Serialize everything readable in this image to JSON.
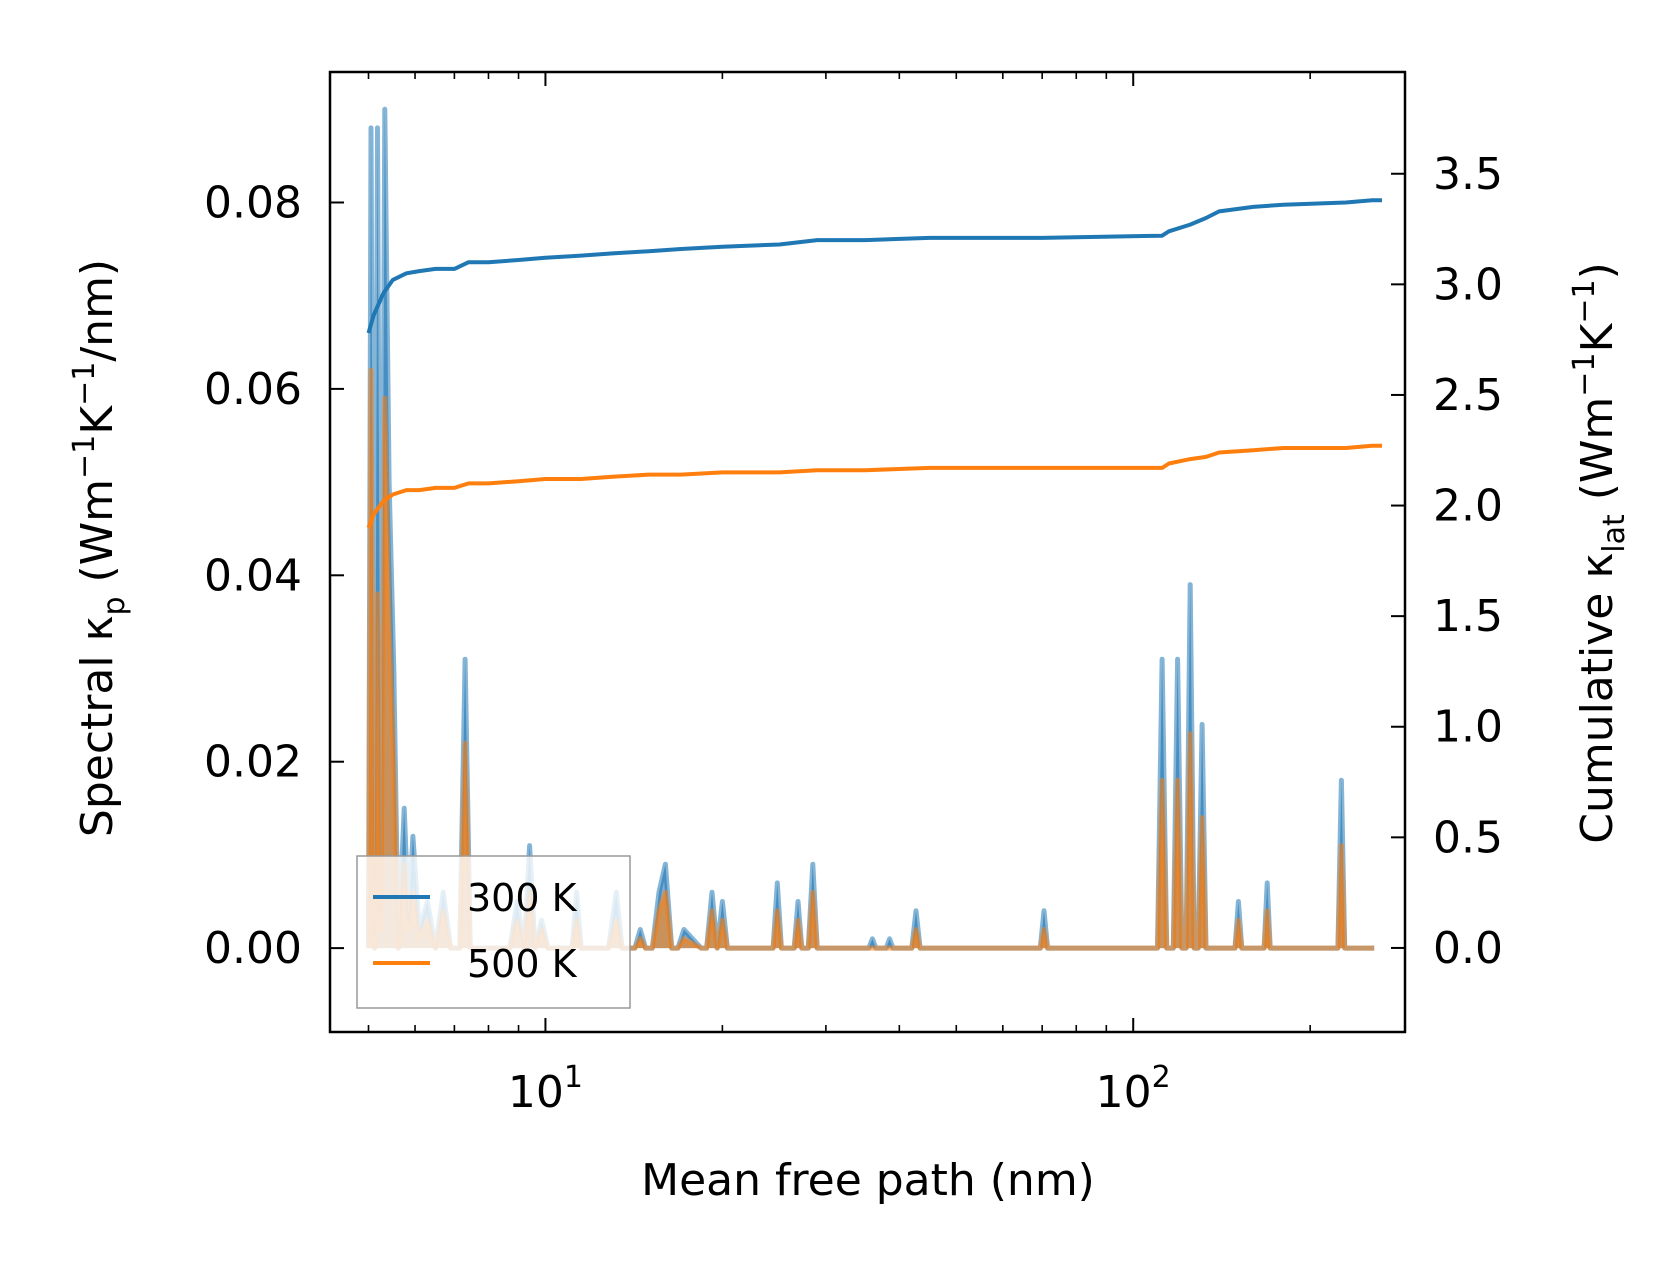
{
  "chart_data": {
    "type": "line",
    "title": "",
    "xlabel": "Mean free path (nm)",
    "ylabel_left": {
      "main": "Spectral κ",
      "sub": "p",
      "unit_pre": " (Wm",
      "exp1": "−1",
      "mid": "K",
      "exp2": "−1",
      "unit_post": "/nm)"
    },
    "ylabel_right": {
      "main": "Cumulative κ",
      "sub": "lat",
      "unit_pre": " (Wm",
      "exp1": "−1",
      "mid": "K",
      "exp2": "−1",
      "unit_post": ")"
    },
    "xscale": "log",
    "xlim": [
      4.3,
      290
    ],
    "ylim_left": [
      -0.009,
      0.094
    ],
    "ylim_right": [
      -0.38,
      3.96
    ],
    "xticks": [
      {
        "base": "10",
        "exp": "1",
        "value": 10
      },
      {
        "base": "10",
        "exp": "2",
        "value": 100
      }
    ],
    "yticks_left": [
      "0.00",
      "0.02",
      "0.04",
      "0.06",
      "0.08"
    ],
    "yticks_right": [
      "0.0",
      "0.5",
      "1.0",
      "1.5",
      "2.0",
      "2.5",
      "3.0",
      "3.5"
    ],
    "legend": {
      "position": "lower-left",
      "entries": [
        "300 K",
        "500 K"
      ]
    },
    "colors": {
      "s300": "#1f77b4",
      "s500": "#ff7f0e"
    },
    "series": [
      {
        "name": "300 K",
        "axis": "right",
        "kind": "cumulative",
        "x": [
          5.0,
          5.1,
          5.3,
          5.5,
          5.8,
          6.1,
          6.5,
          7.0,
          7.4,
          8.0,
          9.0,
          10.0,
          11.5,
          13.0,
          15.0,
          17.0,
          20.0,
          25.0,
          29.0,
          35.0,
          45.0,
          70.0,
          112.0,
          115.0,
          125.0,
          133.0,
          140.0,
          160.0,
          180.0,
          230.0,
          255.0,
          265.0
        ],
        "y": [
          2.78,
          2.86,
          2.96,
          3.02,
          3.05,
          3.06,
          3.07,
          3.07,
          3.1,
          3.1,
          3.11,
          3.12,
          3.13,
          3.14,
          3.15,
          3.16,
          3.17,
          3.18,
          3.2,
          3.2,
          3.21,
          3.21,
          3.22,
          3.24,
          3.27,
          3.3,
          3.33,
          3.35,
          3.36,
          3.37,
          3.38,
          3.38
        ]
      },
      {
        "name": "500 K",
        "axis": "right",
        "kind": "cumulative",
        "x": [
          5.0,
          5.1,
          5.3,
          5.5,
          5.8,
          6.1,
          6.5,
          7.0,
          7.4,
          8.0,
          9.0,
          10.0,
          11.5,
          13.0,
          15.0,
          17.0,
          20.0,
          25.0,
          29.0,
          35.0,
          45.0,
          70.0,
          112.0,
          115.0,
          125.0,
          133.0,
          140.0,
          160.0,
          180.0,
          230.0,
          255.0,
          265.0
        ],
        "y": [
          1.9,
          1.96,
          2.02,
          2.05,
          2.07,
          2.07,
          2.08,
          2.08,
          2.1,
          2.1,
          2.11,
          2.12,
          2.12,
          2.13,
          2.14,
          2.14,
          2.15,
          2.15,
          2.16,
          2.16,
          2.17,
          2.17,
          2.17,
          2.19,
          2.21,
          2.22,
          2.24,
          2.25,
          2.26,
          2.26,
          2.27,
          2.27
        ]
      },
      {
        "name": "300 K spectral",
        "axis": "left",
        "kind": "spectral",
        "x": [
          5.0,
          5.05,
          5.12,
          5.18,
          5.25,
          5.33,
          5.42,
          5.52,
          5.62,
          5.75,
          5.85,
          5.95,
          6.1,
          6.3,
          6.5,
          6.7,
          6.9,
          7.15,
          7.3,
          7.45,
          7.6,
          8.7,
          8.95,
          9.2,
          9.4,
          9.6,
          9.85,
          10.1,
          11.1,
          11.3,
          11.5,
          11.8,
          12.8,
          13.2,
          13.5,
          14.2,
          14.5,
          14.8,
          15.2,
          15.6,
          16.0,
          16.4,
          16.8,
          17.2,
          18.4,
          18.8,
          19.2,
          19.6,
          20.0,
          20.4,
          24.4,
          24.8,
          25.2,
          26.5,
          26.9,
          27.3,
          28.0,
          28.5,
          29.0,
          35.5,
          36.0,
          36.5,
          38.0,
          38.5,
          39.0,
          42.0,
          42.7,
          43.4,
          69.5,
          70.5,
          71.5,
          110.0,
          112.0,
          114.0,
          117.0,
          119.0,
          121.0,
          123.0,
          125.0,
          127.0,
          129.0,
          131.0,
          133.0,
          135.0,
          137.0,
          149.0,
          151.0,
          153.0,
          167.0,
          169.0,
          171.0,
          223.0,
          226.0,
          229.0,
          249.0,
          253.0,
          257.0
        ],
        "y": [
          0.0,
          0.088,
          0.0,
          0.088,
          0.003,
          0.09,
          0.05,
          0.03,
          0.0,
          0.015,
          0.003,
          0.012,
          0.002,
          0.005,
          0.0,
          0.006,
          0.0,
          0.0,
          0.031,
          0.0,
          0.0,
          0.0,
          0.005,
          0.0,
          0.011,
          0.0,
          0.003,
          0.0,
          0.0,
          0.006,
          0.0,
          0.0,
          0.0,
          0.006,
          0.0,
          0.0,
          0.002,
          0.0,
          0.0,
          0.006,
          0.009,
          0.0,
          0.0,
          0.002,
          0.0,
          0.0,
          0.006,
          0.0,
          0.005,
          0.0,
          0.0,
          0.007,
          0.0,
          0.0,
          0.005,
          0.0,
          0.0,
          0.009,
          0.0,
          0.0,
          0.001,
          0.0,
          0.0,
          0.001,
          0.0,
          0.0,
          0.004,
          0.0,
          0.0,
          0.004,
          0.0,
          0.0,
          0.031,
          0.0,
          0.0,
          0.031,
          0.0,
          0.0,
          0.039,
          0.0,
          0.0,
          0.024,
          0.0,
          0.0,
          0.0,
          0.0,
          0.005,
          0.0,
          0.0,
          0.007,
          0.0,
          0.0,
          0.018,
          0.0,
          0.0,
          0.0,
          0.0
        ]
      },
      {
        "name": "500 K spectral",
        "axis": "left",
        "kind": "spectral",
        "x": [
          5.0,
          5.05,
          5.12,
          5.18,
          5.25,
          5.33,
          5.42,
          5.52,
          5.62,
          5.75,
          5.85,
          5.95,
          6.1,
          6.3,
          6.5,
          6.7,
          6.9,
          7.15,
          7.3,
          7.45,
          7.6,
          8.7,
          8.95,
          9.2,
          9.4,
          9.6,
          9.85,
          10.1,
          11.1,
          11.3,
          11.5,
          11.8,
          12.8,
          13.2,
          13.5,
          14.2,
          14.5,
          14.8,
          15.2,
          15.6,
          16.0,
          16.4,
          16.8,
          17.2,
          18.4,
          18.8,
          19.2,
          19.6,
          20.0,
          20.4,
          24.4,
          24.8,
          25.2,
          26.5,
          26.9,
          27.3,
          28.0,
          28.5,
          29.0,
          35.5,
          36.0,
          36.5,
          38.0,
          38.5,
          39.0,
          42.0,
          42.7,
          43.4,
          69.5,
          70.5,
          71.5,
          110.0,
          112.0,
          114.0,
          117.0,
          119.0,
          121.0,
          123.0,
          125.0,
          127.0,
          129.0,
          131.0,
          133.0,
          135.0,
          137.0,
          149.0,
          151.0,
          153.0,
          167.0,
          169.0,
          171.0,
          223.0,
          226.0,
          229.0,
          249.0,
          253.0,
          257.0
        ],
        "y": [
          0.0,
          0.062,
          0.0,
          0.038,
          0.002,
          0.059,
          0.035,
          0.02,
          0.0,
          0.009,
          0.002,
          0.006,
          0.001,
          0.003,
          0.0,
          0.004,
          0.0,
          0.0,
          0.022,
          0.0,
          0.0,
          0.0,
          0.003,
          0.0,
          0.006,
          0.0,
          0.002,
          0.0,
          0.0,
          0.003,
          0.0,
          0.0,
          0.0,
          0.003,
          0.0,
          0.0,
          0.001,
          0.0,
          0.0,
          0.004,
          0.006,
          0.0,
          0.0,
          0.001,
          0.0,
          0.0,
          0.004,
          0.0,
          0.003,
          0.0,
          0.0,
          0.004,
          0.0,
          0.0,
          0.003,
          0.0,
          0.0,
          0.006,
          0.0,
          0.0,
          0.0,
          0.0,
          0.0,
          0.0,
          0.0,
          0.0,
          0.002,
          0.0,
          0.0,
          0.002,
          0.0,
          0.0,
          0.018,
          0.0,
          0.0,
          0.018,
          0.0,
          0.0,
          0.023,
          0.0,
          0.0,
          0.014,
          0.0,
          0.0,
          0.0,
          0.0,
          0.003,
          0.0,
          0.0,
          0.004,
          0.0,
          0.0,
          0.011,
          0.0,
          0.0,
          0.0,
          0.0
        ]
      }
    ]
  }
}
